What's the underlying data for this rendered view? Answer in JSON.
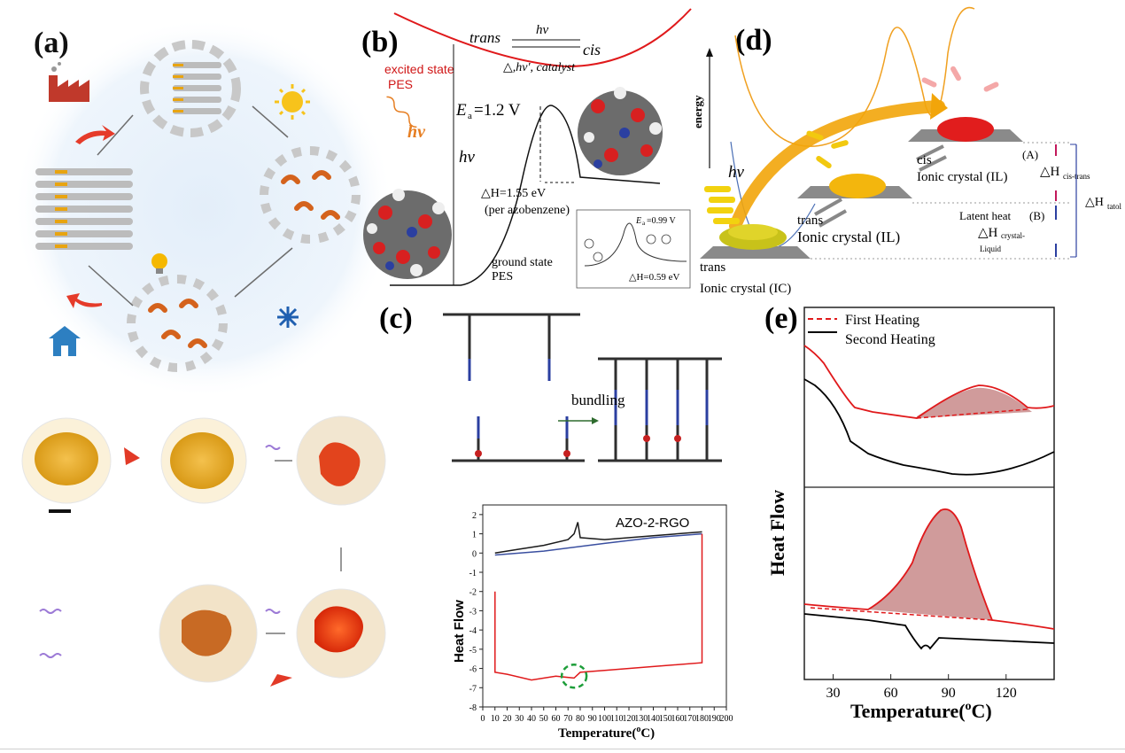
{
  "colors": {
    "red": "#e0191b",
    "orange": "#f0a020",
    "blue_curve": "#4a6fb5",
    "gold": "#f2b705",
    "shade": "#c98a8a"
  },
  "panel_a": {
    "label": "(a)"
  },
  "panel_b": {
    "label": "(b)",
    "trans": "trans",
    "hv_top": "hv",
    "cis": "cis",
    "reverse": "△,hv', catalyst",
    "excited_state": "excited state",
    "pes": "PES",
    "hv_wave": "hv",
    "ea_sym": "E",
    "ea_sub": "a",
    "ea_value": "=1.2 V",
    "hv_mid": "hv",
    "delta_h": "△H=1.55 eV",
    "per_azo": "(per azobenzene)",
    "ground_state": "ground state",
    "ground_pes": "PES",
    "inset_ea_sym": "E",
    "inset_ea_sub": "a",
    "inset_ea_value": "=0.99 V",
    "inset_dh": "△H=0.59 eV"
  },
  "panel_c": {
    "label": "(c)",
    "bundling": "bundling",
    "chart_title": "AZO-2-RGO",
    "ylabel": "Heat Flow",
    "xlabel": "Temperature(",
    "xlabel_sup": "o",
    "xlabel_end": "C)"
  },
  "panel_d": {
    "label": "(d)",
    "energy": "energy",
    "hv": "hv",
    "cis": "cis",
    "cis_ic": "Ionic crystal (IL)",
    "a_label": "(A)",
    "dh_cis_trans": "△H",
    "dh_cis_trans_sub": "cis-trans",
    "trans_il": "trans",
    "trans_il_ic": "Ionic crystal (IL)",
    "latent": "Latent heat",
    "b_label": "(B)",
    "dh_crystal": "△H",
    "dh_crystal_sub": "crystal-",
    "liquid": "Liquid",
    "dh_total": "△H",
    "dh_total_sub": "tatol",
    "trans_ic": "trans",
    "trans_ic_ic": "Ionic crystal (IC)"
  },
  "panel_e": {
    "label": "(e)",
    "legend_first": "First Heating",
    "legend_second": "Second Heating",
    "ylabel": "Heat Flow",
    "xlabel": "Temperature(",
    "xlabel_sup": "o",
    "xlabel_end": "C)"
  },
  "chart_data": [
    {
      "type": "line",
      "title": "AZO-2-RGO",
      "xlabel": "Temperature(oC)",
      "ylabel": "Heat Flow",
      "xlim": [
        0,
        200
      ],
      "ylim": [
        -8,
        2.5
      ],
      "xticks": [
        0,
        10,
        20,
        30,
        40,
        50,
        60,
        70,
        80,
        90,
        100,
        110,
        120,
        130,
        140,
        150,
        160,
        170,
        180,
        190,
        200
      ],
      "yticks": [
        -8,
        -7,
        -6,
        -5,
        -4,
        -3,
        -2,
        -1,
        0,
        1,
        2
      ],
      "series": [
        {
          "color": "#1a1a1a",
          "x": [
            10,
            30,
            50,
            70,
            75,
            78,
            80,
            100,
            140,
            180
          ],
          "y": [
            0.0,
            0.2,
            0.4,
            0.7,
            1.0,
            1.6,
            0.8,
            0.7,
            0.9,
            1.1
          ]
        },
        {
          "color": "#3a4fa0",
          "x": [
            10,
            50,
            100,
            140,
            180
          ],
          "y": [
            -0.1,
            0.1,
            0.5,
            0.8,
            1.0
          ]
        },
        {
          "color": "#e0191b",
          "x": [
            10,
            10,
            20,
            40,
            60,
            75,
            80,
            100,
            140,
            180,
            180
          ],
          "y": [
            -2.0,
            -6.2,
            -6.3,
            -6.6,
            -6.4,
            -6.5,
            -6.2,
            -6.1,
            -5.9,
            -5.7,
            1.0
          ]
        }
      ]
    },
    {
      "type": "line",
      "xlabel": "Temperature(oC)",
      "ylabel": "Heat Flow",
      "xlim": [
        15,
        145
      ],
      "xticks": [
        30,
        60,
        90,
        120
      ],
      "series": [
        {
          "name": "First Heating",
          "color": "#e0191b"
        },
        {
          "name": "Second Heating",
          "color": "#000000"
        }
      ]
    }
  ]
}
